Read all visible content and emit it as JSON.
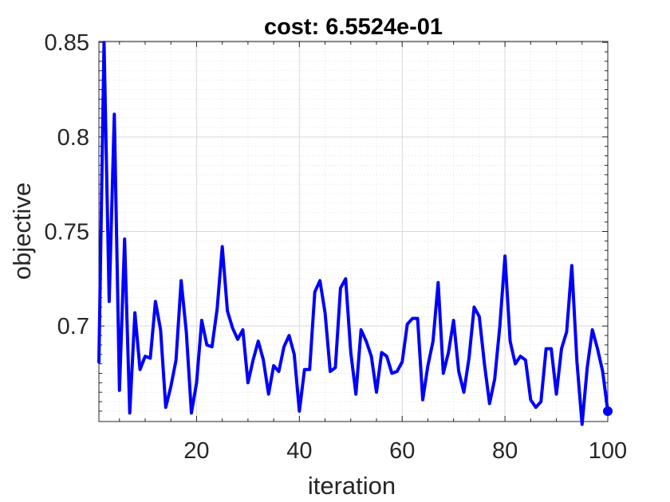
{
  "chart_data": {
    "type": "line",
    "title": "cost: 6.5524e-01",
    "xlabel": "iteration",
    "ylabel": "objective",
    "xlim": [
      1,
      100
    ],
    "ylim": [
      0.6495,
      0.8505
    ],
    "xticks": [
      20,
      40,
      60,
      80,
      100
    ],
    "yticks": [
      0.7,
      0.75,
      0.8,
      0.85
    ],
    "ytick_labels": [
      "0.7",
      "0.75",
      "0.8",
      "0.85"
    ],
    "grid": true,
    "minor_grid": true,
    "line_color": "#0000ff",
    "end_marker": true,
    "series": [
      {
        "x": [
          1,
          2,
          3,
          4,
          5,
          6,
          7,
          8,
          9,
          10,
          11,
          12,
          13,
          14,
          15,
          16,
          17,
          18,
          19,
          20,
          21,
          22,
          23,
          24,
          25,
          26,
          27,
          28,
          29,
          30,
          31,
          32,
          33,
          34,
          35,
          36,
          37,
          38,
          39,
          40,
          41,
          42,
          43,
          44,
          45,
          46,
          47,
          48,
          49,
          50,
          51,
          52,
          53,
          54,
          55,
          56,
          57,
          58,
          59,
          60,
          61,
          62,
          63,
          64,
          65,
          66,
          67,
          68,
          69,
          70,
          71,
          72,
          73,
          74,
          75,
          76,
          77,
          78,
          79,
          80,
          81,
          82,
          83,
          84,
          85,
          86,
          87,
          88,
          89,
          90,
          91,
          92,
          93,
          94,
          95,
          96,
          97,
          98,
          99,
          100
        ],
        "values": [
          0.681,
          0.85,
          0.713,
          0.812,
          0.666,
          0.746,
          0.654,
          0.707,
          0.677,
          0.684,
          0.683,
          0.713,
          0.698,
          0.657,
          0.668,
          0.682,
          0.724,
          0.697,
          0.654,
          0.67,
          0.703,
          0.69,
          0.689,
          0.709,
          0.742,
          0.708,
          0.699,
          0.693,
          0.698,
          0.67,
          0.682,
          0.692,
          0.682,
          0.664,
          0.679,
          0.676,
          0.689,
          0.695,
          0.685,
          0.655,
          0.677,
          0.677,
          0.718,
          0.724,
          0.707,
          0.676,
          0.678,
          0.72,
          0.725,
          0.686,
          0.664,
          0.698,
          0.692,
          0.684,
          0.665,
          0.686,
          0.684,
          0.675,
          0.676,
          0.681,
          0.701,
          0.704,
          0.704,
          0.661,
          0.679,
          0.692,
          0.723,
          0.675,
          0.686,
          0.703,
          0.676,
          0.665,
          0.683,
          0.71,
          0.705,
          0.68,
          0.659,
          0.672,
          0.7,
          0.737,
          0.692,
          0.68,
          0.684,
          0.682,
          0.661,
          0.657,
          0.66,
          0.688,
          0.688,
          0.664,
          0.688,
          0.697,
          0.732,
          0.681,
          0.648,
          0.678,
          0.698,
          0.688,
          0.676,
          0.655
        ]
      }
    ]
  }
}
